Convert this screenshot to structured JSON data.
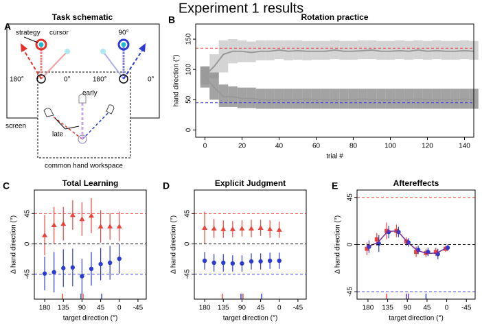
{
  "title": "Experiment 1 results",
  "schematic": {
    "title": "Task schematic",
    "panel_label": "A",
    "strategy": "strategy",
    "cursor": "cursor",
    "target_label": "90°",
    "left_180": "180°",
    "left_0": "0°",
    "right_180": "180°",
    "right_0": "0°",
    "early": "early",
    "late": "late",
    "screen": "screen",
    "workspace": "common hand workspace"
  },
  "chart_data": [
    {
      "type": "line",
      "title": "Rotation practice",
      "panel_label": "B",
      "xlabel": "trial #",
      "ylabel": "hand direction (°)",
      "xlim": [
        -5,
        145
      ],
      "ylim": [
        -12,
        175
      ],
      "xticks": [
        0,
        20,
        40,
        60,
        80,
        100,
        120,
        140
      ],
      "yticks": [
        0,
        50,
        100,
        150
      ],
      "hlines": [
        {
          "value": 135,
          "color": "#e8453c"
        },
        {
          "value": 45,
          "color": "#3b3bd6"
        }
      ],
      "series": [
        {
          "color": "#999999",
          "band_color": "#c9c9c9",
          "x": [
            0,
            5,
            10,
            15,
            20,
            25,
            30,
            35,
            40,
            45,
            50,
            55,
            60,
            65,
            70,
            75,
            80,
            85,
            90,
            95,
            100,
            105,
            110,
            115,
            120,
            125,
            130,
            135,
            140,
            145
          ],
          "values": [
            90,
            105,
            125,
            130,
            130,
            128,
            130,
            130,
            132,
            130,
            131,
            130,
            130,
            130,
            132,
            130,
            130,
            131,
            132,
            130,
            130,
            131,
            130,
            132,
            130,
            131,
            130,
            130,
            131,
            130
          ],
          "low": [
            75,
            85,
            95,
            110,
            112,
            112,
            115,
            115,
            117,
            115,
            116,
            115,
            116,
            116,
            117,
            116,
            116,
            117,
            117,
            116,
            116,
            117,
            116,
            117,
            116,
            117,
            116,
            116,
            117,
            116
          ],
          "high": [
            105,
            125,
            148,
            150,
            148,
            146,
            148,
            148,
            148,
            148,
            148,
            147,
            147,
            147,
            148,
            147,
            147,
            148,
            148,
            147,
            147,
            148,
            147,
            148,
            147,
            148,
            147,
            147,
            148,
            147
          ]
        },
        {
          "color": "#999999",
          "band_color": "#8c8c8c",
          "x": [
            0,
            5,
            10,
            15,
            20,
            25,
            30,
            35,
            40,
            45,
            50,
            55,
            60,
            65,
            70,
            75,
            80,
            85,
            90,
            95,
            100,
            105,
            110,
            115,
            120,
            125,
            130,
            135,
            140,
            145
          ],
          "values": [
            88,
            70,
            55,
            55,
            52,
            52,
            50,
            50,
            50,
            50,
            50,
            51,
            50,
            50,
            50,
            50,
            50,
            51,
            50,
            50,
            50,
            50,
            50,
            51,
            50,
            50,
            50,
            50,
            51,
            50
          ],
          "low": [
            70,
            50,
            38,
            38,
            36,
            36,
            35,
            35,
            35,
            35,
            35,
            35,
            35,
            35,
            35,
            35,
            35,
            35,
            35,
            35,
            35,
            35,
            35,
            35,
            35,
            35,
            35,
            35,
            35,
            35
          ],
          "high": [
            105,
            95,
            75,
            72,
            70,
            70,
            68,
            68,
            68,
            68,
            68,
            68,
            68,
            68,
            68,
            68,
            68,
            68,
            68,
            68,
            68,
            68,
            68,
            68,
            68,
            68,
            68,
            68,
            68,
            68
          ]
        }
      ]
    },
    {
      "type": "scatter",
      "title": "Total Learning",
      "panel_label": "C",
      "xlabel": "target direction (°)",
      "ylabel": "Δ hand direction (°)",
      "xlim": [
        205,
        -65
      ],
      "ylim": [
        -82,
        80
      ],
      "xticks": [
        180,
        135,
        90,
        45,
        0,
        -45
      ],
      "yticks": [
        -45,
        0,
        45
      ],
      "x": [
        180,
        157.5,
        135,
        112.5,
        90,
        67.5,
        45,
        22.5,
        0
      ],
      "hlines": [
        {
          "value": 45,
          "color": "#e8453c"
        },
        {
          "value": 0,
          "color": "#000000"
        },
        {
          "value": -45,
          "color": "#3b3bd6"
        }
      ],
      "target_marks": [
        {
          "value": 135,
          "color": "#e8453c"
        },
        {
          "value": 90,
          "color": "#e8453c"
        },
        {
          "value": 90,
          "color": "#3b3bd6"
        },
        {
          "value": 45,
          "color": "#3b3bd6"
        }
      ],
      "series": [
        {
          "color": "#e8453c",
          "marker": "triangle",
          "values": [
            13,
            28,
            30,
            43,
            37,
            42,
            26,
            26,
            26
          ],
          "errors": [
            30,
            27,
            25,
            22,
            25,
            26,
            24,
            20,
            22
          ]
        },
        {
          "color": "#2b3bd0",
          "marker": "circle",
          "values": [
            -44,
            -42,
            -36,
            -35,
            -48,
            -37,
            -30,
            -28,
            -22
          ],
          "errors": [
            25,
            30,
            28,
            28,
            26,
            25,
            24,
            25,
            22
          ]
        }
      ]
    },
    {
      "type": "scatter",
      "title": "Explicit Judgment",
      "panel_label": "D",
      "xlabel": "target direction (°)",
      "ylabel": "Δ hand direction (°)",
      "xlim": [
        205,
        -65
      ],
      "ylim": [
        -82,
        80
      ],
      "xticks": [
        180,
        135,
        90,
        45,
        0,
        -45
      ],
      "yticks": [
        -45,
        0,
        45
      ],
      "x": [
        180,
        157.5,
        135,
        112.5,
        90,
        67.5,
        45,
        22.5,
        0
      ],
      "hlines": [
        {
          "value": 45,
          "color": "#e8453c"
        },
        {
          "value": 0,
          "color": "#000000"
        },
        {
          "value": -45,
          "color": "#3b3bd6"
        }
      ],
      "target_marks": [
        {
          "value": 135,
          "color": "#e8453c"
        },
        {
          "value": 90,
          "color": "#e8453c"
        },
        {
          "value": 90,
          "color": "#3b3bd6"
        },
        {
          "value": 45,
          "color": "#3b3bd6"
        }
      ],
      "series": [
        {
          "color": "#e8453c",
          "marker": "triangle",
          "values": [
            24,
            23,
            22,
            22,
            23,
            23,
            24,
            22,
            21
          ],
          "errors": [
            24,
            14,
            13,
            12,
            12,
            13,
            12,
            13,
            12
          ]
        },
        {
          "color": "#2b3bd0",
          "marker": "circle",
          "values": [
            -25,
            -28,
            -28,
            -29,
            -29,
            -26,
            -26,
            -25,
            -25
          ],
          "errors": [
            13,
            13,
            13,
            12,
            12,
            12,
            12,
            12,
            12
          ]
        }
      ]
    },
    {
      "type": "scatter",
      "title": "Aftereffects",
      "panel_label": "E",
      "xlabel": "target direction (°)",
      "ylabel": "Δ hand direction (°)",
      "xlim": [
        205,
        -65
      ],
      "ylim": [
        -52,
        52
      ],
      "xticks": [
        180,
        135,
        90,
        45,
        0,
        -45
      ],
      "yticks": [
        -45,
        0,
        45
      ],
      "x": [
        180,
        157.5,
        135,
        112.5,
        90,
        67.5,
        45,
        22.5,
        0
      ],
      "hlines": [
        {
          "value": 45,
          "color": "#e8453c"
        },
        {
          "value": 0,
          "color": "#000000"
        },
        {
          "value": -45,
          "color": "#3b3bd6"
        }
      ],
      "target_marks": [
        {
          "value": 135,
          "color": "#e8453c"
        },
        {
          "value": 90,
          "color": "#e8453c"
        },
        {
          "value": 90,
          "color": "#3b3bd6"
        },
        {
          "value": 90,
          "color": "#8a3ab0"
        },
        {
          "value": 45,
          "color": "#3b3bd6"
        }
      ],
      "series": [
        {
          "color": "#e8453c",
          "marker": "square",
          "values": [
            -4,
            5,
            13,
            13,
            3,
            -7,
            -8,
            -7,
            -4
          ],
          "errors": [
            6,
            6,
            8,
            6,
            4,
            5,
            4,
            4,
            3
          ]
        },
        {
          "color": "#2b3bd0",
          "marker": "circle",
          "values": [
            -2,
            1,
            12,
            12,
            2,
            -5,
            -7,
            -9,
            -3
          ],
          "errors": [
            6,
            8,
            6,
            5,
            4,
            4,
            4,
            5,
            3
          ]
        },
        {
          "color": "#7a2a9a",
          "marker": "line",
          "values": [
            -2,
            2,
            12.5,
            13,
            2.5,
            -5.5,
            -8.5,
            -8,
            -3
          ]
        }
      ]
    }
  ]
}
